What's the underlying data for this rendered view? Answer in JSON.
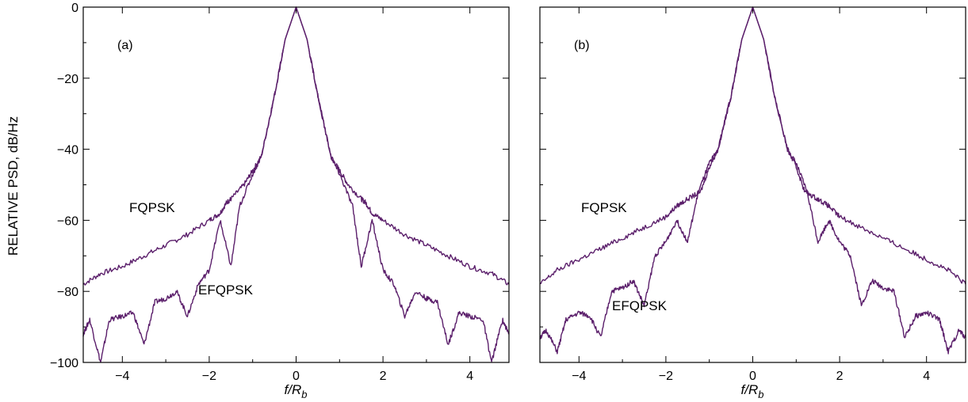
{
  "colors": {
    "curve": "#5b1f6b",
    "axis": "#000000",
    "background": "#ffffff"
  },
  "chart_data": [
    {
      "type": "line",
      "panel_label": "(a)",
      "xlabel_main": "f/R",
      "xlabel_sub": "b",
      "ylabel": "RELATIVE PSD, dB/Hz",
      "xlim": [
        -4.9,
        4.9
      ],
      "ylim": [
        -100,
        0
      ],
      "xticks": [
        -4,
        -2,
        0,
        2,
        4
      ],
      "xtick_labels": [
        "−4",
        "−2",
        "0",
        "2",
        "4"
      ],
      "yticks": [
        0,
        -20,
        -40,
        -60,
        -80,
        -100
      ],
      "ytick_labels": [
        "0",
        "−20",
        "−40",
        "−60",
        "−80",
        "−100"
      ],
      "series_labels": {
        "fqpsk": "FQPSK",
        "efqpsk": "EFQPSK"
      },
      "series": [
        {
          "name": "FQPSK",
          "x": [
            -4.9,
            -4.5,
            -4.0,
            -3.5,
            -3.0,
            -2.5,
            -2.0,
            -1.75,
            -1.6,
            -1.5,
            -1.2,
            -1.0,
            -0.8,
            -0.5,
            -0.25,
            0.0,
            0.25,
            0.5,
            0.8,
            1.0,
            1.2,
            1.5,
            1.6,
            1.75,
            2.0,
            2.5,
            3.0,
            3.5,
            4.0,
            4.5,
            4.9
          ],
          "values": [
            -78,
            -75,
            -73,
            -70,
            -67,
            -64,
            -60,
            -58,
            -55,
            -54,
            -50,
            -46,
            -42,
            -25,
            -9,
            0,
            -9,
            -25,
            -42,
            -46,
            -50,
            -54,
            -55,
            -58,
            -60,
            -64,
            -67,
            -70,
            -73,
            -75,
            -78
          ]
        },
        {
          "name": "EFQPSK",
          "x": [
            -4.9,
            -4.75,
            -4.5,
            -4.3,
            -4.0,
            -3.75,
            -3.5,
            -3.25,
            -3.0,
            -2.75,
            -2.5,
            -2.25,
            -2.0,
            -1.75,
            -1.5,
            -1.3,
            -1.0,
            -0.8,
            -0.5,
            -0.25,
            0.0,
            0.25,
            0.5,
            0.8,
            1.0,
            1.3,
            1.5,
            1.75,
            2.0,
            2.25,
            2.5,
            2.75,
            3.0,
            3.25,
            3.5,
            3.75,
            4.0,
            4.3,
            4.5,
            4.75,
            4.9
          ],
          "values": [
            -92,
            -88,
            -100,
            -88,
            -87,
            -86,
            -95,
            -83,
            -82,
            -80,
            -87,
            -78,
            -74,
            -60,
            -73,
            -56,
            -47,
            -42,
            -25,
            -9,
            0,
            -9,
            -25,
            -42,
            -47,
            -56,
            -73,
            -60,
            -74,
            -78,
            -87,
            -80,
            -82,
            -83,
            -95,
            -86,
            -87,
            -88,
            -100,
            -88,
            -92
          ]
        }
      ]
    },
    {
      "type": "line",
      "panel_label": "(b)",
      "xlabel_main": "f/R",
      "xlabel_sub": "b",
      "xlim": [
        -4.9,
        4.9
      ],
      "ylim": [
        -100,
        0
      ],
      "xticks": [
        -4,
        -2,
        0,
        2,
        4
      ],
      "xtick_labels": [
        "−4",
        "−2",
        "0",
        "2",
        "4"
      ],
      "series_labels": {
        "fqpsk": "FQPSK",
        "efqpsk": "EFQPSK"
      },
      "series": [
        {
          "name": "FQPSK",
          "x": [
            -4.9,
            -4.5,
            -4.0,
            -3.5,
            -3.0,
            -2.5,
            -2.0,
            -1.75,
            -1.5,
            -1.2,
            -1.0,
            -0.8,
            -0.5,
            -0.25,
            0.0,
            0.25,
            0.5,
            0.8,
            1.0,
            1.2,
            1.5,
            1.75,
            2.0,
            2.5,
            3.0,
            3.5,
            4.0,
            4.5,
            4.9
          ],
          "values": [
            -78,
            -74,
            -71,
            -68,
            -65,
            -62,
            -59,
            -56,
            -54,
            -52,
            -45,
            -40,
            -25,
            -9,
            0,
            -9,
            -25,
            -40,
            -45,
            -52,
            -54,
            -56,
            -59,
            -62,
            -65,
            -68,
            -71,
            -74,
            -78
          ]
        },
        {
          "name": "EFQPSK",
          "x": [
            -4.9,
            -4.75,
            -4.5,
            -4.3,
            -4.0,
            -3.75,
            -3.5,
            -3.25,
            -3.0,
            -2.75,
            -2.5,
            -2.25,
            -2.0,
            -1.75,
            -1.5,
            -1.25,
            -1.0,
            -0.8,
            -0.5,
            -0.25,
            0.0,
            0.25,
            0.5,
            0.8,
            1.0,
            1.25,
            1.5,
            1.75,
            2.0,
            2.25,
            2.5,
            2.75,
            3.0,
            3.25,
            3.5,
            3.75,
            4.0,
            4.3,
            4.5,
            4.75,
            4.9
          ],
          "values": [
            -93,
            -91,
            -97,
            -88,
            -86,
            -87,
            -93,
            -80,
            -79,
            -77,
            -84,
            -70,
            -66,
            -60,
            -66,
            -52,
            -44,
            -40,
            -25,
            -9,
            0,
            -9,
            -25,
            -40,
            -44,
            -52,
            -66,
            -60,
            -66,
            -70,
            -84,
            -77,
            -79,
            -80,
            -93,
            -87,
            -86,
            -88,
            -97,
            -91,
            -93
          ]
        }
      ]
    }
  ]
}
